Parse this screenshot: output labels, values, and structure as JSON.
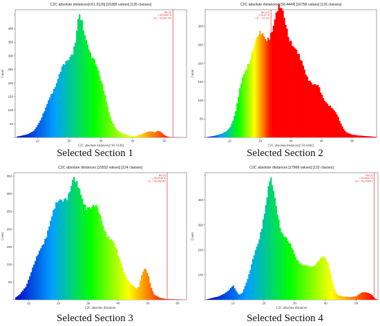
{
  "captions": [
    "Selected Section 1",
    "Selected Section 2",
    "Selected Section 3",
    "Selected Section 4"
  ],
  "colors": {
    "marker_line": "#e03030",
    "axis": "#666666",
    "plot_bg": "#ffffff",
    "colormap": [
      "#0000c8",
      "#00a0ff",
      "#00ff00",
      "#ffff00",
      "#ff0000"
    ]
  },
  "chart_data": [
    {
      "type": "bar",
      "title": "C2C absolute distances[<61.3126] [16385 values] [126 classes]",
      "xlabel": "C2C absolute distances[<61.3126]",
      "ylabel": "Count",
      "xlim": [
        3,
        57
      ],
      "ylim": [
        0,
        470
      ],
      "xticks": [
        10,
        20,
        30,
        40,
        50
      ],
      "yticks": [
        0,
        50,
        100,
        150,
        200,
        250,
        300,
        350,
        400,
        450
      ],
      "ytick_labels": [
        "",
        "50",
        "100",
        "150",
        "200",
        "250",
        "300",
        "350",
        "400",
        ""
      ],
      "bins": 126,
      "marker_x": 52.7,
      "marker_label": [
        "Bin [1]",
        "= 99.9964 %",
        "<xL = 52.661799"
      ],
      "profile": [
        [
          3.5,
          3
        ],
        [
          5,
          6
        ],
        [
          7,
          12
        ],
        [
          9,
          28
        ],
        [
          11,
          60
        ],
        [
          12.5,
          100
        ],
        [
          14,
          160
        ],
        [
          15.5,
          195
        ],
        [
          17,
          225
        ],
        [
          18.5,
          255
        ],
        [
          20,
          300
        ],
        [
          21,
          330
        ],
        [
          22,
          370
        ],
        [
          23,
          440
        ],
        [
          24,
          400
        ],
        [
          25,
          350
        ],
        [
          26,
          340
        ],
        [
          27,
          320
        ],
        [
          28,
          300
        ],
        [
          29,
          250
        ],
        [
          30,
          200
        ],
        [
          31,
          160
        ],
        [
          32,
          120
        ],
        [
          33,
          80
        ],
        [
          34,
          50
        ],
        [
          35,
          28
        ],
        [
          36,
          18
        ],
        [
          37,
          12
        ],
        [
          38,
          10
        ],
        [
          39,
          8
        ],
        [
          40,
          6
        ],
        [
          41,
          5
        ],
        [
          43,
          12
        ],
        [
          45,
          22
        ],
        [
          46,
          24
        ],
        [
          47,
          20
        ],
        [
          48,
          25
        ],
        [
          49,
          18
        ],
        [
          50,
          8
        ],
        [
          51,
          3
        ],
        [
          52,
          1
        ],
        [
          57,
          0
        ]
      ]
    },
    {
      "type": "bar",
      "title": "C2C absolute distances[<56.4444] [16758 values] [126 classes]",
      "xlabel": "C2C absolute distances[<56.4444]",
      "ylabel": "Count",
      "xlim": [
        2,
        58
      ],
      "ylim": [
        0,
        345
      ],
      "xticks": [
        10,
        20,
        30,
        40,
        50
      ],
      "yticks": [
        0,
        50,
        100,
        150,
        200,
        250,
        300
      ],
      "ytick_labels": [
        "",
        "50",
        "100",
        "150",
        "200",
        "250",
        "300"
      ],
      "bins": 126,
      "marker_x": 23.5,
      "marker_label": [
        "Bin [47]",
        "= 35.47 %",
        "<xL = 23.312"
      ],
      "profile": [
        [
          2.5,
          1
        ],
        [
          4,
          3
        ],
        [
          6,
          6
        ],
        [
          7.5,
          10
        ],
        [
          9,
          18
        ],
        [
          10,
          28
        ],
        [
          11,
          45
        ],
        [
          12,
          70
        ],
        [
          13,
          110
        ],
        [
          14,
          150
        ],
        [
          15,
          180
        ],
        [
          16,
          210
        ],
        [
          17,
          235
        ],
        [
          18,
          250
        ],
        [
          19,
          260
        ],
        [
          20,
          265
        ],
        [
          21,
          270
        ],
        [
          22,
          275
        ],
        [
          23,
          290
        ],
        [
          24,
          305
        ],
        [
          25,
          320
        ],
        [
          26,
          330
        ],
        [
          27,
          335
        ],
        [
          28,
          320
        ],
        [
          29,
          300
        ],
        [
          30,
          275
        ],
        [
          31,
          245
        ],
        [
          32,
          220
        ],
        [
          33,
          200
        ],
        [
          34,
          190
        ],
        [
          35,
          175
        ],
        [
          36,
          165
        ],
        [
          37,
          150
        ],
        [
          38,
          140
        ],
        [
          39,
          130
        ],
        [
          40,
          110
        ],
        [
          41,
          100
        ],
        [
          42,
          95
        ],
        [
          43,
          90
        ],
        [
          44,
          75
        ],
        [
          45,
          60
        ],
        [
          46,
          40
        ],
        [
          47,
          25
        ],
        [
          48,
          15
        ],
        [
          50,
          8
        ],
        [
          52,
          5
        ],
        [
          54,
          4
        ],
        [
          56,
          3
        ],
        [
          58,
          1
        ]
      ]
    },
    {
      "type": "bar",
      "title": "C2C absolute distances [15532 values] [124 classes]",
      "xlabel": "C2C absolute distances",
      "ylabel": "Count",
      "xlim": [
        5,
        63
      ],
      "ylim": [
        0,
        360
      ],
      "xticks": [
        10,
        20,
        30,
        40,
        50,
        60
      ],
      "yticks": [
        0,
        50,
        100,
        150,
        200,
        250,
        300,
        350
      ],
      "ytick_labels": [
        "",
        "50",
        "100",
        "150",
        "200",
        "250",
        "300",
        "350"
      ],
      "bins": 124,
      "marker_x": 56.5,
      "marker_label": [
        "Bin [1]",
        "= 99.9936 %",
        "<xL = 56.942393"
      ],
      "profile": [
        [
          5.5,
          5
        ],
        [
          7,
          15
        ],
        [
          9,
          40
        ],
        [
          11,
          80
        ],
        [
          13,
          120
        ],
        [
          15,
          170
        ],
        [
          17,
          220
        ],
        [
          19,
          250
        ],
        [
          20,
          270
        ],
        [
          22,
          300
        ],
        [
          24,
          320
        ],
        [
          25,
          330
        ],
        [
          26,
          310
        ],
        [
          28,
          290
        ],
        [
          30,
          275
        ],
        [
          32,
          255
        ],
        [
          34,
          230
        ],
        [
          36,
          200
        ],
        [
          38,
          170
        ],
        [
          40,
          120
        ],
        [
          42,
          80
        ],
        [
          44,
          50
        ],
        [
          46,
          30
        ],
        [
          47,
          35
        ],
        [
          48,
          70
        ],
        [
          49,
          95
        ],
        [
          50,
          80
        ],
        [
          51,
          40
        ],
        [
          52,
          15
        ],
        [
          54,
          5
        ],
        [
          56,
          2
        ],
        [
          63,
          0
        ]
      ]
    },
    {
      "type": "bar",
      "title": "C2C absolute distances [17968 values] [132 classes]",
      "xlabel": "C2C absolute distances",
      "ylabel": "Count",
      "xlim": [
        1,
        57
      ],
      "ylim": [
        0,
        510
      ],
      "xticks": [
        10,
        20,
        30,
        40,
        50
      ],
      "yticks": [
        0,
        100,
        200,
        300,
        400,
        500
      ],
      "ytick_labels": [
        "",
        "100",
        "200",
        "300",
        "400",
        ""
      ],
      "bins": 132,
      "marker_x": 55.8,
      "marker_label": [
        "Bin [1]",
        "= 99.9945 %",
        "<xL = 55.476671"
      ],
      "profile": [
        [
          1.5,
          2
        ],
        [
          3,
          6
        ],
        [
          5,
          12
        ],
        [
          7,
          25
        ],
        [
          9,
          40
        ],
        [
          10,
          55
        ],
        [
          11,
          35
        ],
        [
          12,
          20
        ],
        [
          13,
          30
        ],
        [
          14,
          60
        ],
        [
          15,
          90
        ],
        [
          16,
          130
        ],
        [
          17,
          180
        ],
        [
          18,
          230
        ],
        [
          19,
          290
        ],
        [
          20,
          350
        ],
        [
          21,
          400
        ],
        [
          22,
          460
        ],
        [
          23,
          430
        ],
        [
          24,
          380
        ],
        [
          25,
          330
        ],
        [
          26,
          280
        ],
        [
          27,
          250
        ],
        [
          28,
          220
        ],
        [
          29,
          200
        ],
        [
          30,
          180
        ],
        [
          31,
          165
        ],
        [
          32,
          155
        ],
        [
          33,
          140
        ],
        [
          34,
          130
        ],
        [
          35,
          125
        ],
        [
          36,
          130
        ],
        [
          37,
          150
        ],
        [
          38,
          175
        ],
        [
          39,
          180
        ],
        [
          40,
          160
        ],
        [
          41,
          130
        ],
        [
          42,
          80
        ],
        [
          43,
          40
        ],
        [
          44,
          20
        ],
        [
          46,
          12
        ],
        [
          48,
          10
        ],
        [
          50,
          15
        ],
        [
          51,
          25
        ],
        [
          52,
          30
        ],
        [
          53,
          28
        ],
        [
          54,
          25
        ],
        [
          55,
          20
        ],
        [
          56,
          5
        ],
        [
          57,
          0
        ]
      ]
    }
  ]
}
